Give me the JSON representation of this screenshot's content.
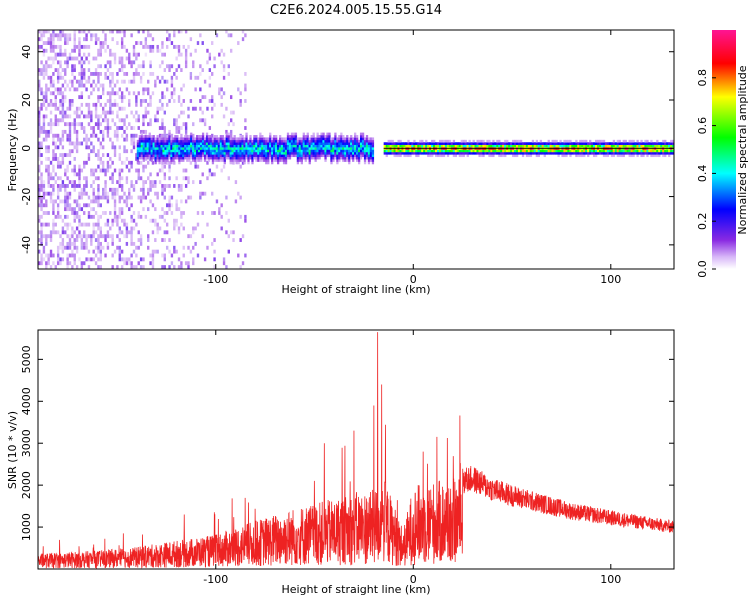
{
  "title": "C2E6.2024.005.15.55.G14",
  "chart_data": [
    {
      "type": "heatmap",
      "title": "C2E6.2024.005.15.55.G14",
      "xlabel": "Height of straight line (km)",
      "ylabel": "Frequency (Hz)",
      "xlim": [
        -190,
        132
      ],
      "ylim": [
        -50,
        49
      ],
      "xticks": [
        -100,
        0,
        100
      ],
      "yticks": [
        -40,
        -20,
        0,
        20,
        40
      ],
      "colorbar": {
        "label": "Normalized spectral amplitude",
        "range": [
          0.0,
          1.0
        ],
        "ticks": [
          0.0,
          0.2,
          0.4,
          0.6,
          0.8
        ],
        "colormap": [
          "#ffffff",
          "#8a2be2",
          "#0000ff",
          "#00ffff",
          "#00ff00",
          "#ffff00",
          "#ff0000",
          "#ff1493"
        ]
      },
      "regions": [
        {
          "x_range": [
            -190,
            -85
          ],
          "description_type": "scattered",
          "freq_range": [
            -50,
            49
          ],
          "amplitude": 0.12
        },
        {
          "x_range": [
            -140,
            -20
          ],
          "description_type": "band",
          "freq_center": 0,
          "freq_halfwidth": 4,
          "amplitude": 0.45
        },
        {
          "x_range": [
            -15,
            132
          ],
          "description_type": "band",
          "freq_center": 0,
          "freq_halfwidth": 2,
          "amplitude": 0.85
        }
      ]
    },
    {
      "type": "line",
      "xlabel": "Height of straight line (km)",
      "ylabel": "SNR (10 * v/v)",
      "xlim": [
        -190,
        132
      ],
      "ylim": [
        0,
        5700
      ],
      "xticks": [
        -100,
        0,
        100
      ],
      "yticks": [
        1000,
        2000,
        3000,
        4000,
        5000
      ],
      "color": "#ee2222",
      "envelope": [
        {
          "x": -190,
          "y": 350
        },
        {
          "x": -160,
          "y": 420
        },
        {
          "x": -140,
          "y": 500
        },
        {
          "x": -120,
          "y": 650
        },
        {
          "x": -100,
          "y": 780
        },
        {
          "x": -90,
          "y": 950
        },
        {
          "x": -80,
          "y": 1100
        },
        {
          "x": -70,
          "y": 1250
        },
        {
          "x": -60,
          "y": 1400
        },
        {
          "x": -50,
          "y": 1500
        },
        {
          "x": -40,
          "y": 1600
        },
        {
          "x": -30,
          "y": 1750
        },
        {
          "x": -20,
          "y": 1800
        },
        {
          "x": -15,
          "y": 2100
        },
        {
          "x": -10,
          "y": 1500
        },
        {
          "x": -5,
          "y": 900
        },
        {
          "x": 0,
          "y": 1900
        },
        {
          "x": 10,
          "y": 2000
        },
        {
          "x": 20,
          "y": 2050
        },
        {
          "x": 30,
          "y": 2150
        },
        {
          "x": 40,
          "y": 1900
        },
        {
          "x": 50,
          "y": 1750
        },
        {
          "x": 60,
          "y": 1620
        },
        {
          "x": 70,
          "y": 1500
        },
        {
          "x": 80,
          "y": 1380
        },
        {
          "x": 90,
          "y": 1300
        },
        {
          "x": 100,
          "y": 1220
        },
        {
          "x": 110,
          "y": 1150
        },
        {
          "x": 120,
          "y": 1080
        },
        {
          "x": 132,
          "y": 1000
        }
      ],
      "peaks": [
        {
          "x": -45,
          "y": 3000
        },
        {
          "x": -30,
          "y": 3300
        },
        {
          "x": -20,
          "y": 3900
        },
        {
          "x": -18,
          "y": 5650
        },
        {
          "x": -16,
          "y": 4400
        },
        {
          "x": 5,
          "y": 2800
        },
        {
          "x": 12,
          "y": 3150
        }
      ]
    }
  ]
}
